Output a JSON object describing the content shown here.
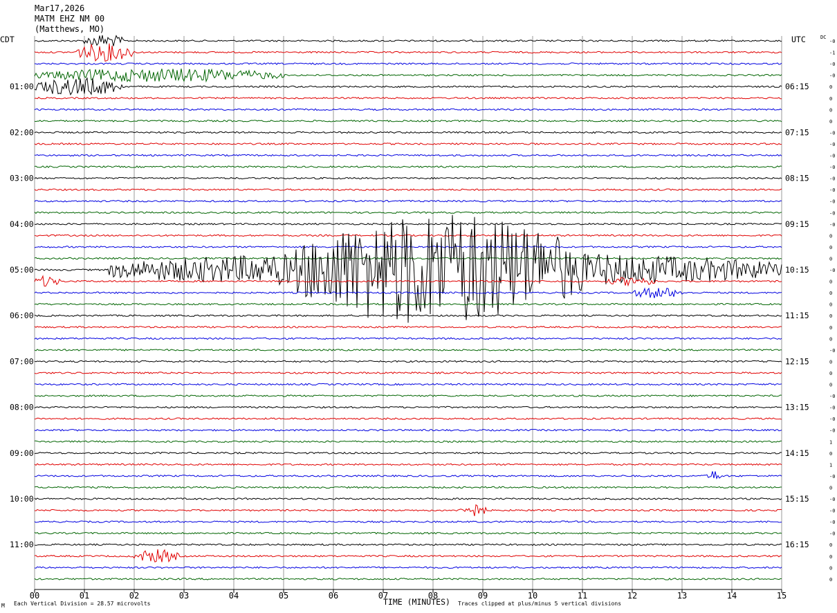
{
  "header": {
    "date": "Mar17,2026",
    "station": "MATM EHZ NM 00",
    "location": "(Matthews, MO)"
  },
  "labels": {
    "left_zone": "CDT",
    "right_zone": "UTC",
    "dc": "DC",
    "xlabel": "TIME (MINUTES)",
    "scale_note": "Each Vertical Division =   28.57 microvolts",
    "clip_note": "Traces clipped at plus/minus 5 vertical divisions",
    "corner_mark": "M"
  },
  "chart_data": {
    "type": "line",
    "xlim": [
      0,
      15
    ],
    "x_ticks": [
      "00",
      "01",
      "02",
      "03",
      "04",
      "05",
      "06",
      "07",
      "08",
      "09",
      "10",
      "11",
      "12",
      "13",
      "14",
      "15"
    ],
    "trace_count": 48,
    "minutes_per_trace": 15,
    "trace_colors": [
      "#000000",
      "#e00000",
      "#0000e0",
      "#006400"
    ],
    "left_time_labels": [
      {
        "trace": 4,
        "text": "01:00"
      },
      {
        "trace": 8,
        "text": "02:00"
      },
      {
        "trace": 12,
        "text": "03:00"
      },
      {
        "trace": 16,
        "text": "04:00"
      },
      {
        "trace": 20,
        "text": "05:00"
      },
      {
        "trace": 24,
        "text": "06:00"
      },
      {
        "trace": 28,
        "text": "07:00"
      },
      {
        "trace": 32,
        "text": "08:00"
      },
      {
        "trace": 36,
        "text": "09:00"
      },
      {
        "trace": 40,
        "text": "10:00"
      },
      {
        "trace": 44,
        "text": "11:00"
      }
    ],
    "right_time_labels": [
      {
        "trace": 4,
        "text": "06:15"
      },
      {
        "trace": 8,
        "text": "07:15"
      },
      {
        "trace": 12,
        "text": "08:15"
      },
      {
        "trace": 16,
        "text": "09:15"
      },
      {
        "trace": 20,
        "text": "10:15"
      },
      {
        "trace": 24,
        "text": "11:15"
      },
      {
        "trace": 28,
        "text": "12:15"
      },
      {
        "trace": 32,
        "text": "13:15"
      },
      {
        "trace": 36,
        "text": "14:15"
      },
      {
        "trace": 40,
        "text": "15:15"
      },
      {
        "trace": 44,
        "text": "16:15"
      }
    ],
    "dc_offsets": [
      "-0",
      "-1",
      "-0",
      "-0",
      "0",
      "0",
      "0",
      "0",
      "-0",
      "-0",
      "-0",
      "-0",
      "-0",
      "-0",
      "-0",
      "-0",
      "-0",
      "0",
      "0",
      "0",
      "-0",
      "0",
      "0",
      "0",
      "0",
      "0",
      "0",
      "-0",
      "0",
      "0",
      "0",
      "-0",
      "-0",
      "-0",
      "-0",
      "1",
      "0",
      "1",
      "-0",
      "0",
      "-0",
      "-0",
      "-0",
      "-0",
      "0",
      "0",
      "0",
      "0"
    ],
    "events": [
      {
        "trace": 20,
        "start_min": 1.5,
        "end_min": 15,
        "amplitude": 1.6,
        "label": ""
      },
      {
        "trace": 20,
        "start_min": 5.2,
        "end_min": 11.0,
        "amplitude": 5.0,
        "label": ""
      },
      {
        "trace": 0,
        "start_min": 1.0,
        "end_min": 1.8,
        "amplitude": 0.6,
        "label": ""
      },
      {
        "trace": 1,
        "start_min": 0.8,
        "end_min": 2.0,
        "amplitude": 0.8,
        "label": ""
      },
      {
        "trace": 3,
        "start_min": 0.0,
        "end_min": 5.0,
        "amplitude": 0.6,
        "label": ""
      },
      {
        "trace": 4,
        "start_min": 0.0,
        "end_min": 1.8,
        "amplitude": 0.8,
        "label": ""
      },
      {
        "trace": 21,
        "start_min": 0.0,
        "end_min": 0.5,
        "amplitude": 0.5,
        "label": ""
      },
      {
        "trace": 21,
        "start_min": 11.5,
        "end_min": 12.5,
        "amplitude": 0.4,
        "label": ""
      },
      {
        "trace": 22,
        "start_min": 12.0,
        "end_min": 13.0,
        "amplitude": 0.5,
        "label": ""
      },
      {
        "trace": 41,
        "start_min": 8.5,
        "end_min": 9.1,
        "amplitude": 0.6,
        "label": ""
      },
      {
        "trace": 45,
        "start_min": 2.0,
        "end_min": 2.9,
        "amplitude": 0.6,
        "label": ""
      },
      {
        "trace": 38,
        "start_min": 13.5,
        "end_min": 13.8,
        "amplitude": 0.5,
        "label": ""
      }
    ]
  }
}
